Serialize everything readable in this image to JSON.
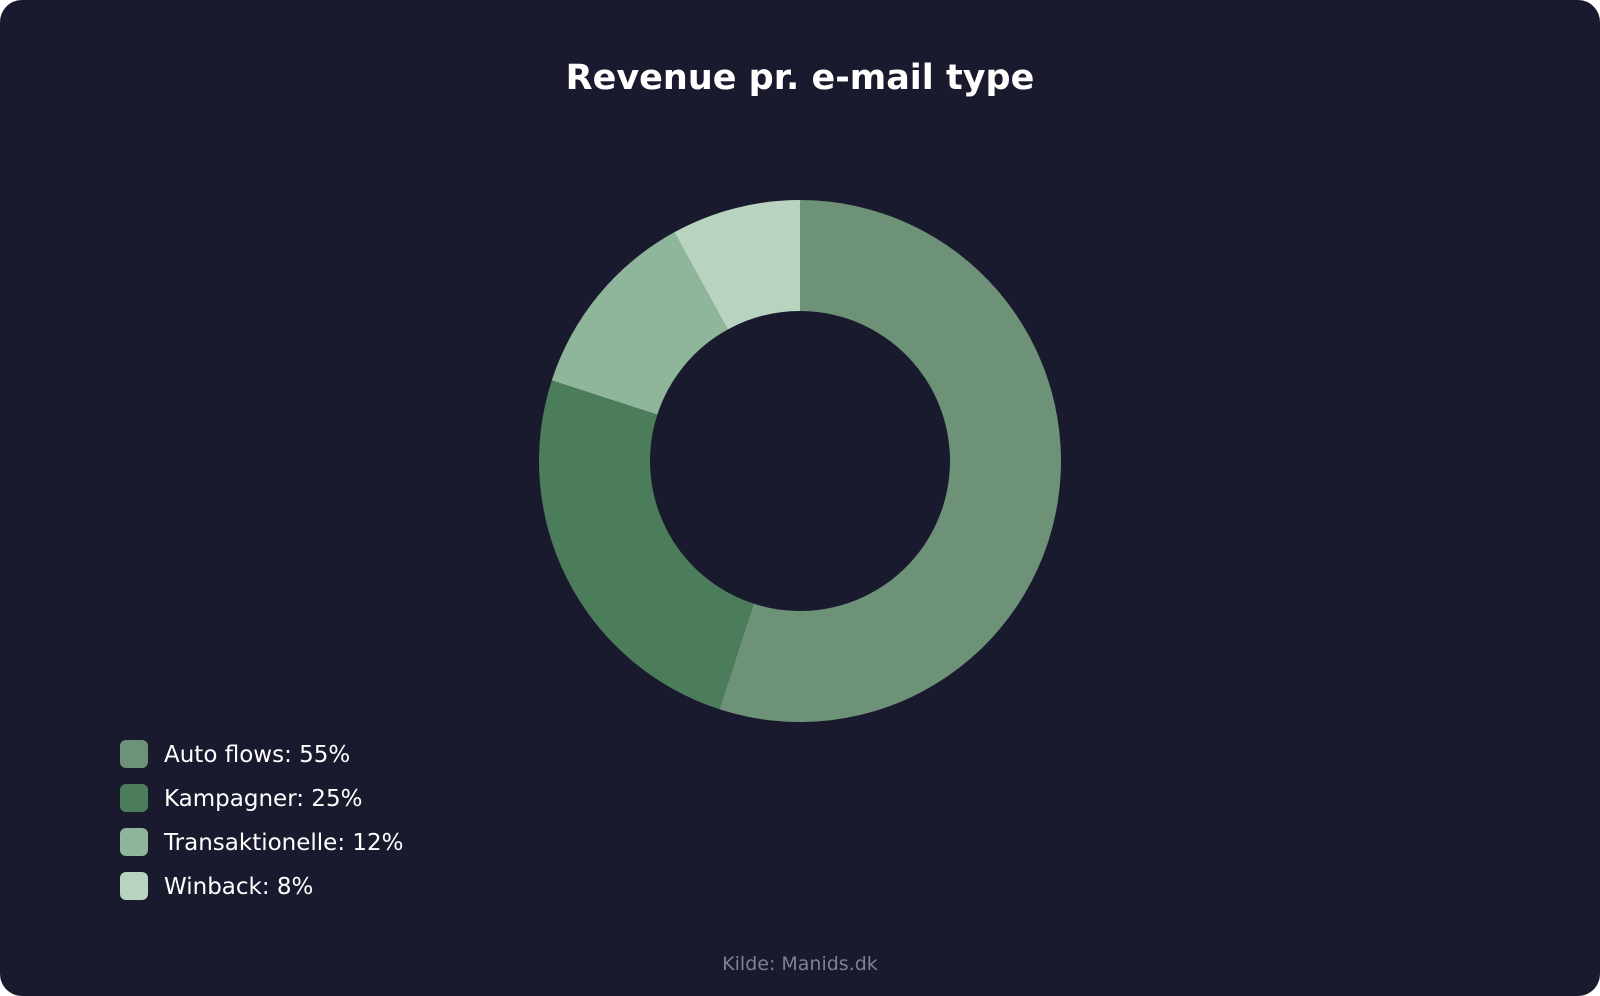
{
  "chart_data": {
    "type": "pie",
    "variant": "donut",
    "title": "Revenue pr. e-mail type",
    "categories": [
      "Auto flows",
      "Kampagner",
      "Transaktionelle",
      "Winback"
    ],
    "values": [
      55,
      25,
      12,
      8
    ],
    "unit": "%",
    "colors": [
      "#6e9278",
      "#4b7d5a",
      "#8fb69a",
      "#b8d4c0"
    ],
    "legend": {
      "placement": "bottom-left",
      "entries": [
        {
          "label": "Auto flows: 55%",
          "color": "#6e9278"
        },
        {
          "label": "Kampagner: 25%",
          "color": "#4b7d5a"
        },
        {
          "label": "Transaktionelle: 12%",
          "color": "#8fb69a"
        },
        {
          "label": "Winback: 8%",
          "color": "#b8d4c0"
        }
      ]
    }
  },
  "source": "Kilde: Manids.dk",
  "colors": {
    "background": "#1a1a2e",
    "text": "#ffffff",
    "muted": "#7f8090"
  }
}
